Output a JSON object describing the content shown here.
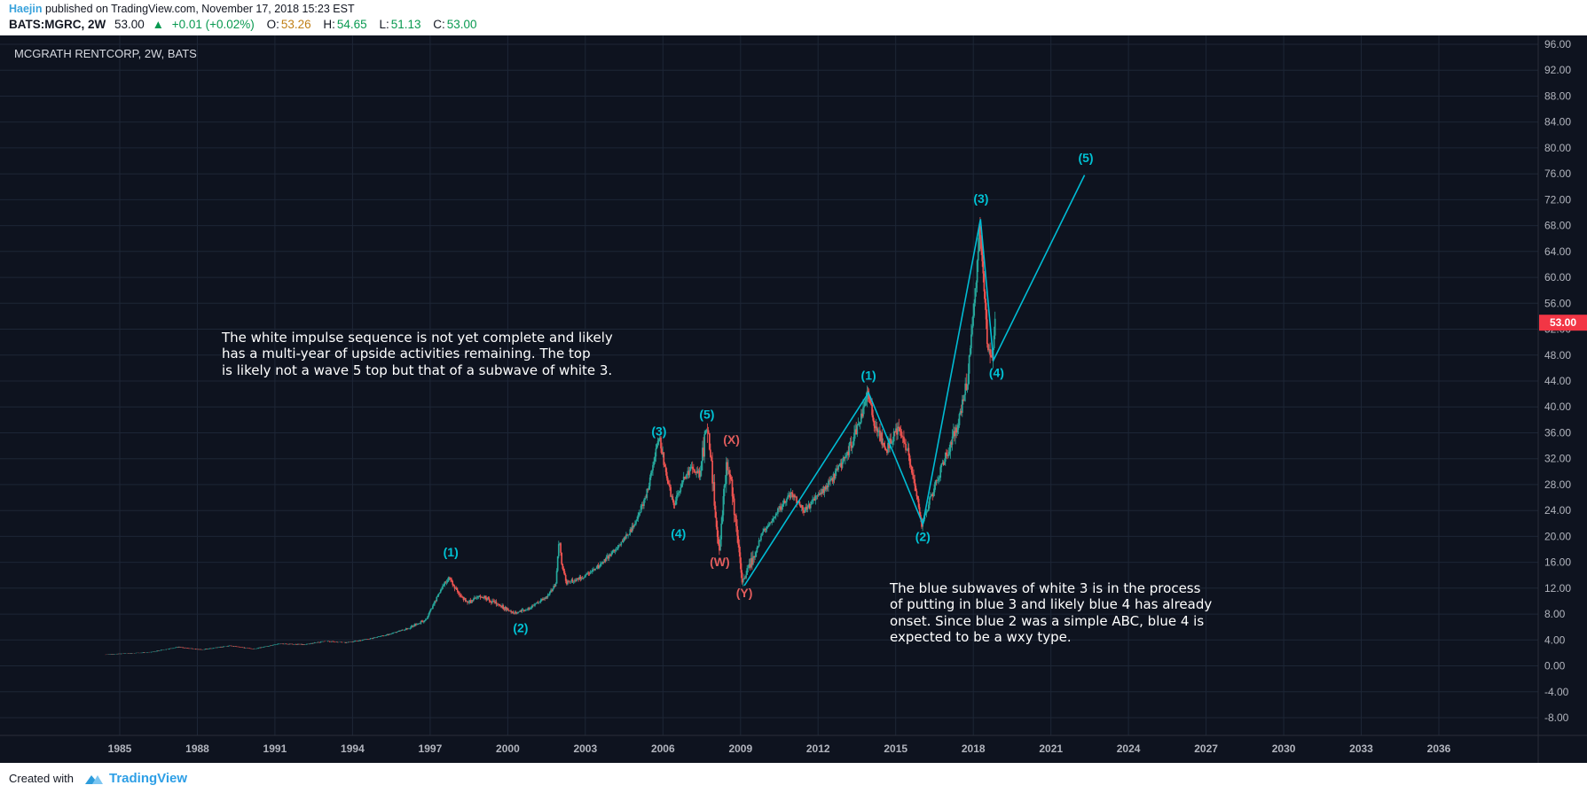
{
  "header": {
    "author": "Haejin",
    "published_text": "published on TradingView.com, November 17, 2018 15:23 EST",
    "symbol_text": "BATS:MGRC, 2W",
    "price": "53.00",
    "direction_icon": "▲",
    "change_text": "+0.01 (+0.02%)",
    "ohlc": [
      {
        "label": "O:",
        "value": "53.26"
      },
      {
        "label": "H:",
        "value": "54.65"
      },
      {
        "label": "L:",
        "value": "51.13"
      },
      {
        "label": "C:",
        "value": "53.00"
      }
    ]
  },
  "footer": {
    "created_with": "Created with",
    "brand": "TradingView"
  },
  "colors": {
    "background": "#0e131f",
    "grid": "#1d2636",
    "axis_separator": "#2a2e39",
    "candle_up": "#26a69a",
    "candle_down": "#ef5350",
    "wave_cyan": "#00c2d4",
    "wave_red": "#e05c5c",
    "trendline": "#00bcd4",
    "axis_text": "#b2b5be",
    "price_tag_bg": "#f23645",
    "price_tag_text": "#ffffff",
    "note_text": "#ffffff",
    "author_blue": "#3aa3dc",
    "brand_blue": "#2e9fe6",
    "up_green": "#089950",
    "open_amber": "#c07f16"
  },
  "chart_data": {
    "type": "candlestick",
    "title": "MCGRATH RENTCORP, 2W, BATS",
    "symbol": "BATS:MGRC",
    "interval": "2W",
    "exchange": "BATS",
    "last_price": 53.0,
    "x_axis": {
      "ticks": [
        1985,
        1988,
        1991,
        1994,
        1997,
        2000,
        2003,
        2006,
        2009,
        2012,
        2015,
        2018,
        2021,
        2024,
        2027,
        2030,
        2033,
        2036
      ]
    },
    "y_axis": {
      "ticks": [
        96,
        92,
        88,
        84,
        80,
        76,
        72,
        68,
        64,
        60,
        56,
        52,
        48,
        44,
        40,
        36,
        32,
        28,
        24,
        20,
        16,
        12,
        8,
        4,
        0,
        -4,
        -8
      ],
      "format": "0.00"
    },
    "swing_points": [
      [
        1984.45,
        1.75
      ],
      [
        1985.3,
        1.9
      ],
      [
        1986.2,
        2.1
      ],
      [
        1987.3,
        2.9
      ],
      [
        1988.2,
        2.5
      ],
      [
        1989.3,
        3.1
      ],
      [
        1990.2,
        2.6
      ],
      [
        1991.2,
        3.4
      ],
      [
        1992.2,
        3.3
      ],
      [
        1993.0,
        3.8
      ],
      [
        1993.8,
        3.6
      ],
      [
        1994.6,
        4.1
      ],
      [
        1995.4,
        4.8
      ],
      [
        1996.2,
        5.8
      ],
      [
        1996.9,
        7.2
      ],
      [
        1997.4,
        11.5
      ],
      [
        1997.8,
        13.8
      ],
      [
        1998.1,
        11.2
      ],
      [
        1998.5,
        9.8
      ],
      [
        1999.0,
        10.8
      ],
      [
        1999.6,
        9.6
      ],
      [
        2000.3,
        8.1
      ],
      [
        2000.9,
        9.0
      ],
      [
        2001.5,
        10.5
      ],
      [
        2001.9,
        12.6
      ],
      [
        2002.02,
        19.6
      ],
      [
        2002.12,
        16.0
      ],
      [
        2002.3,
        12.8
      ],
      [
        2002.9,
        13.6
      ],
      [
        2003.6,
        15.5
      ],
      [
        2004.3,
        18.5
      ],
      [
        2004.9,
        21.5
      ],
      [
        2005.4,
        26.5
      ],
      [
        2005.9,
        35.5
      ],
      [
        2006.15,
        30.0
      ],
      [
        2006.45,
        24.5
      ],
      [
        2006.8,
        28.5
      ],
      [
        2007.1,
        30.5
      ],
      [
        2007.45,
        29.5
      ],
      [
        2007.75,
        37.3
      ],
      [
        2008.0,
        27.0
      ],
      [
        2008.2,
        17.5
      ],
      [
        2008.5,
        31.0
      ],
      [
        2008.7,
        28.0
      ],
      [
        2008.9,
        20.0
      ],
      [
        2009.1,
        12.9
      ],
      [
        2009.4,
        15.5
      ],
      [
        2009.9,
        20.5
      ],
      [
        2010.5,
        24.0
      ],
      [
        2011.0,
        26.5
      ],
      [
        2011.5,
        24.0
      ],
      [
        2012.0,
        26.0
      ],
      [
        2012.5,
        28.5
      ],
      [
        2013.0,
        31.5
      ],
      [
        2013.5,
        36.0
      ],
      [
        2013.95,
        41.8
      ],
      [
        2014.3,
        36.5
      ],
      [
        2014.7,
        33.5
      ],
      [
        2015.1,
        36.5
      ],
      [
        2015.5,
        33.0
      ],
      [
        2015.8,
        27.5
      ],
      [
        2016.05,
        21.8
      ],
      [
        2016.4,
        26.0
      ],
      [
        2016.9,
        31.5
      ],
      [
        2017.4,
        37.0
      ],
      [
        2017.8,
        44.0
      ],
      [
        2018.05,
        54.0
      ],
      [
        2018.28,
        68.8
      ],
      [
        2018.45,
        57.0
      ],
      [
        2018.6,
        49.5
      ],
      [
        2018.72,
        46.8
      ],
      [
        2018.87,
        53.0
      ]
    ],
    "wave_labels": [
      {
        "text": "(1)",
        "year": 1997.8,
        "price": 16.9,
        "color": "cyan"
      },
      {
        "text": "(2)",
        "year": 2000.5,
        "price": 5.2,
        "color": "cyan"
      },
      {
        "text": "(3)",
        "year": 2005.85,
        "price": 35.6,
        "color": "cyan"
      },
      {
        "text": "(4)",
        "year": 2006.6,
        "price": 19.8,
        "color": "cyan"
      },
      {
        "text": "(5)",
        "year": 2007.7,
        "price": 38.2,
        "color": "cyan"
      },
      {
        "text": "(W)",
        "year": 2008.2,
        "price": 15.4,
        "color": "red"
      },
      {
        "text": "(X)",
        "year": 2008.65,
        "price": 34.3,
        "color": "red"
      },
      {
        "text": "(Y)",
        "year": 2009.15,
        "price": 10.6,
        "color": "red"
      },
      {
        "text": "(1)",
        "year": 2013.95,
        "price": 44.2,
        "color": "cyan"
      },
      {
        "text": "(2)",
        "year": 2016.05,
        "price": 19.3,
        "color": "cyan"
      },
      {
        "text": "(3)",
        "year": 2018.3,
        "price": 71.5,
        "color": "cyan"
      },
      {
        "text": "(4)",
        "year": 2018.9,
        "price": 44.6,
        "color": "cyan"
      },
      {
        "text": "(5)",
        "year": 2022.35,
        "price": 77.8,
        "color": "cyan"
      }
    ],
    "trendline": {
      "points": [
        [
          2009.15,
          12.4
        ],
        [
          2013.95,
          42.2
        ],
        [
          2016.05,
          21.9
        ],
        [
          2018.28,
          69.0
        ],
        [
          2018.78,
          47.2
        ],
        [
          2022.3,
          75.8
        ]
      ]
    },
    "notes": [
      {
        "text": "The white impulse sequence is not yet complete and likely\nhas a multi-year of upside activities remaining. The top\nis likely not a wave 5 top but that of a subwave of white 3.",
        "year": 1988.94,
        "price": 51.9
      },
      {
        "text": "The blue subwaves of white 3 is in the process\nof putting in blue 3 and likely blue 4 has already\nonset. Since blue 2 was a simple ABC, blue 4 is\nexpected to be a wxy type.",
        "year": 2014.76,
        "price": 13.2
      }
    ]
  }
}
